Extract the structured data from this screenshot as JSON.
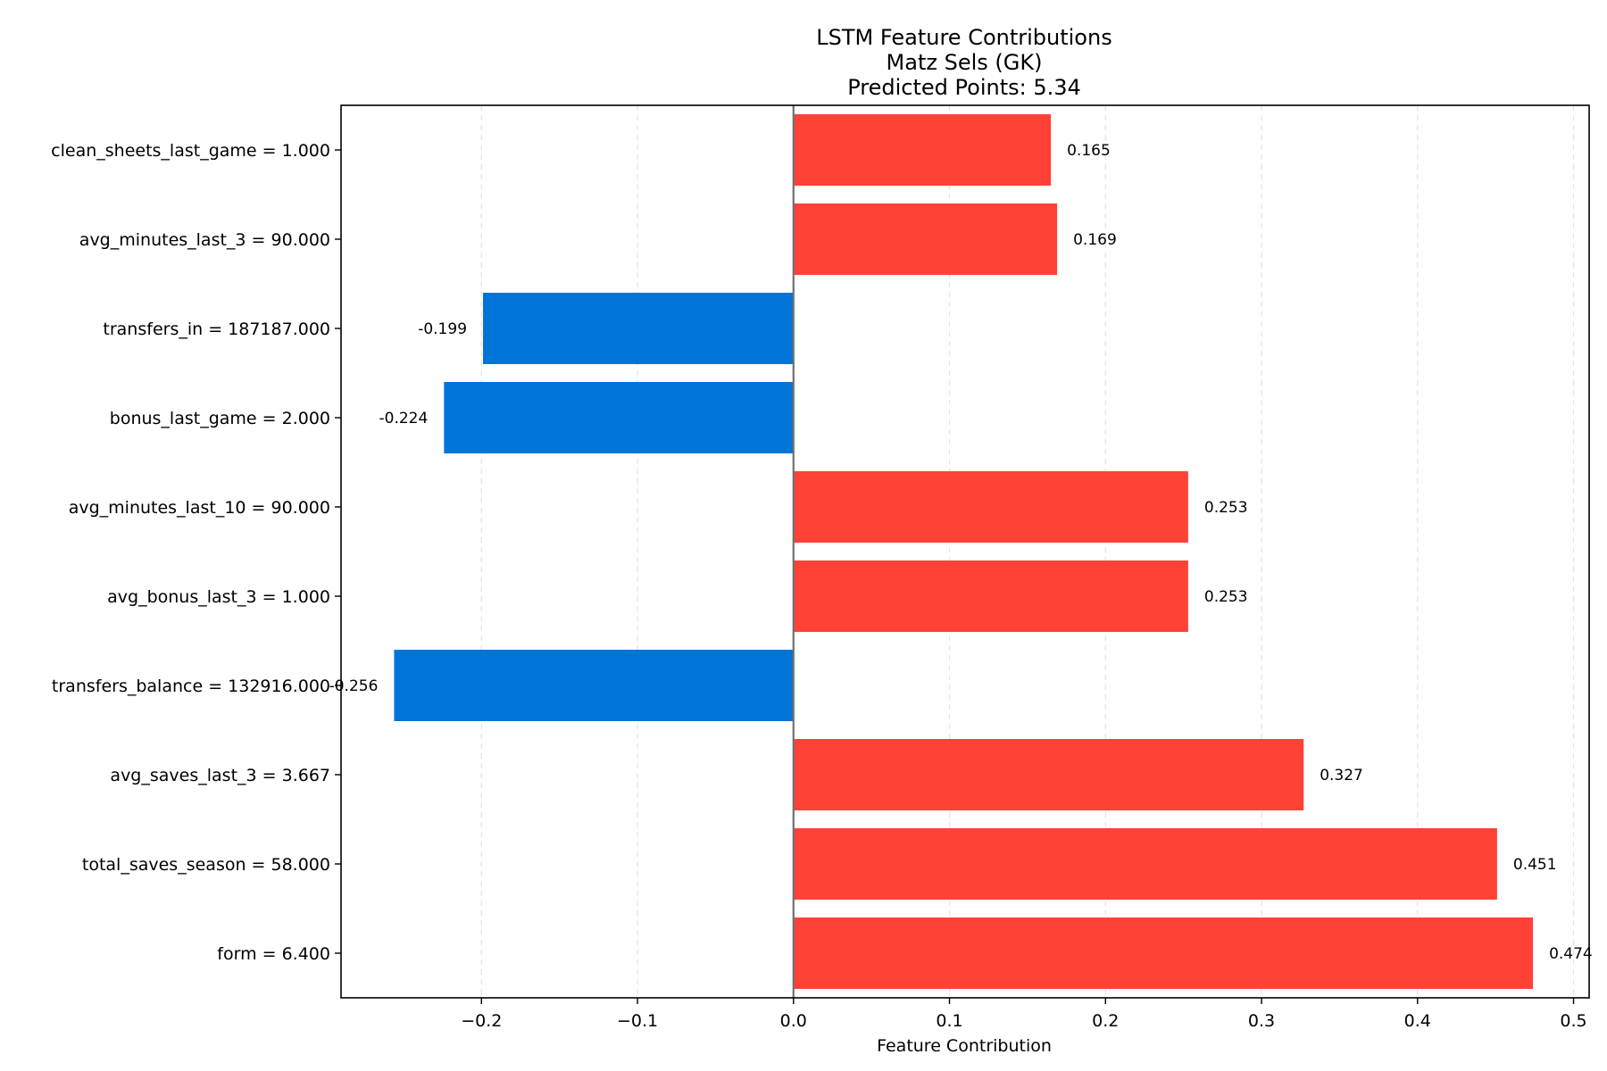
{
  "chart_data": {
    "type": "bar",
    "orientation": "horizontal",
    "title": "LSTM Feature Contributions",
    "subtitle_lines": [
      "Matz Sels (GK)",
      "Predicted Points: 5.34"
    ],
    "xlabel": "Feature Contribution",
    "ylabel": "",
    "xlim": [
      -0.29,
      0.51
    ],
    "xticks": [
      -0.2,
      -0.1,
      0.0,
      0.1,
      0.2,
      0.3,
      0.4,
      0.5
    ],
    "xtick_labels": [
      "−0.2",
      "−0.1",
      "0.0",
      "0.1",
      "0.2",
      "0.3",
      "0.4",
      "0.5"
    ],
    "grid": "vertical-dashed",
    "zero_line": true,
    "categories": [
      "clean_sheets_last_game = 1.000",
      "avg_minutes_last_3 = 90.000",
      "transfers_in = 187187.000",
      "bonus_last_game = 2.000",
      "avg_minutes_last_10 = 90.000",
      "avg_bonus_last_3 = 1.000",
      "transfers_balance = 132916.000",
      "avg_saves_last_3 = 3.667",
      "total_saves_season = 58.000",
      "form = 6.400"
    ],
    "values": [
      0.165,
      0.169,
      -0.199,
      -0.224,
      0.253,
      0.253,
      -0.256,
      0.327,
      0.451,
      0.474
    ],
    "value_labels": [
      "0.165",
      "0.169",
      "-0.199",
      "-0.224",
      "0.253",
      "0.253",
      "-0.256",
      "0.327",
      "0.451",
      "0.474"
    ],
    "colors": {
      "positive": "#ff4136",
      "negative": "#0074d9",
      "zero_line": "#707070",
      "grid": "#e3e3e3",
      "frame": "#000000"
    }
  }
}
